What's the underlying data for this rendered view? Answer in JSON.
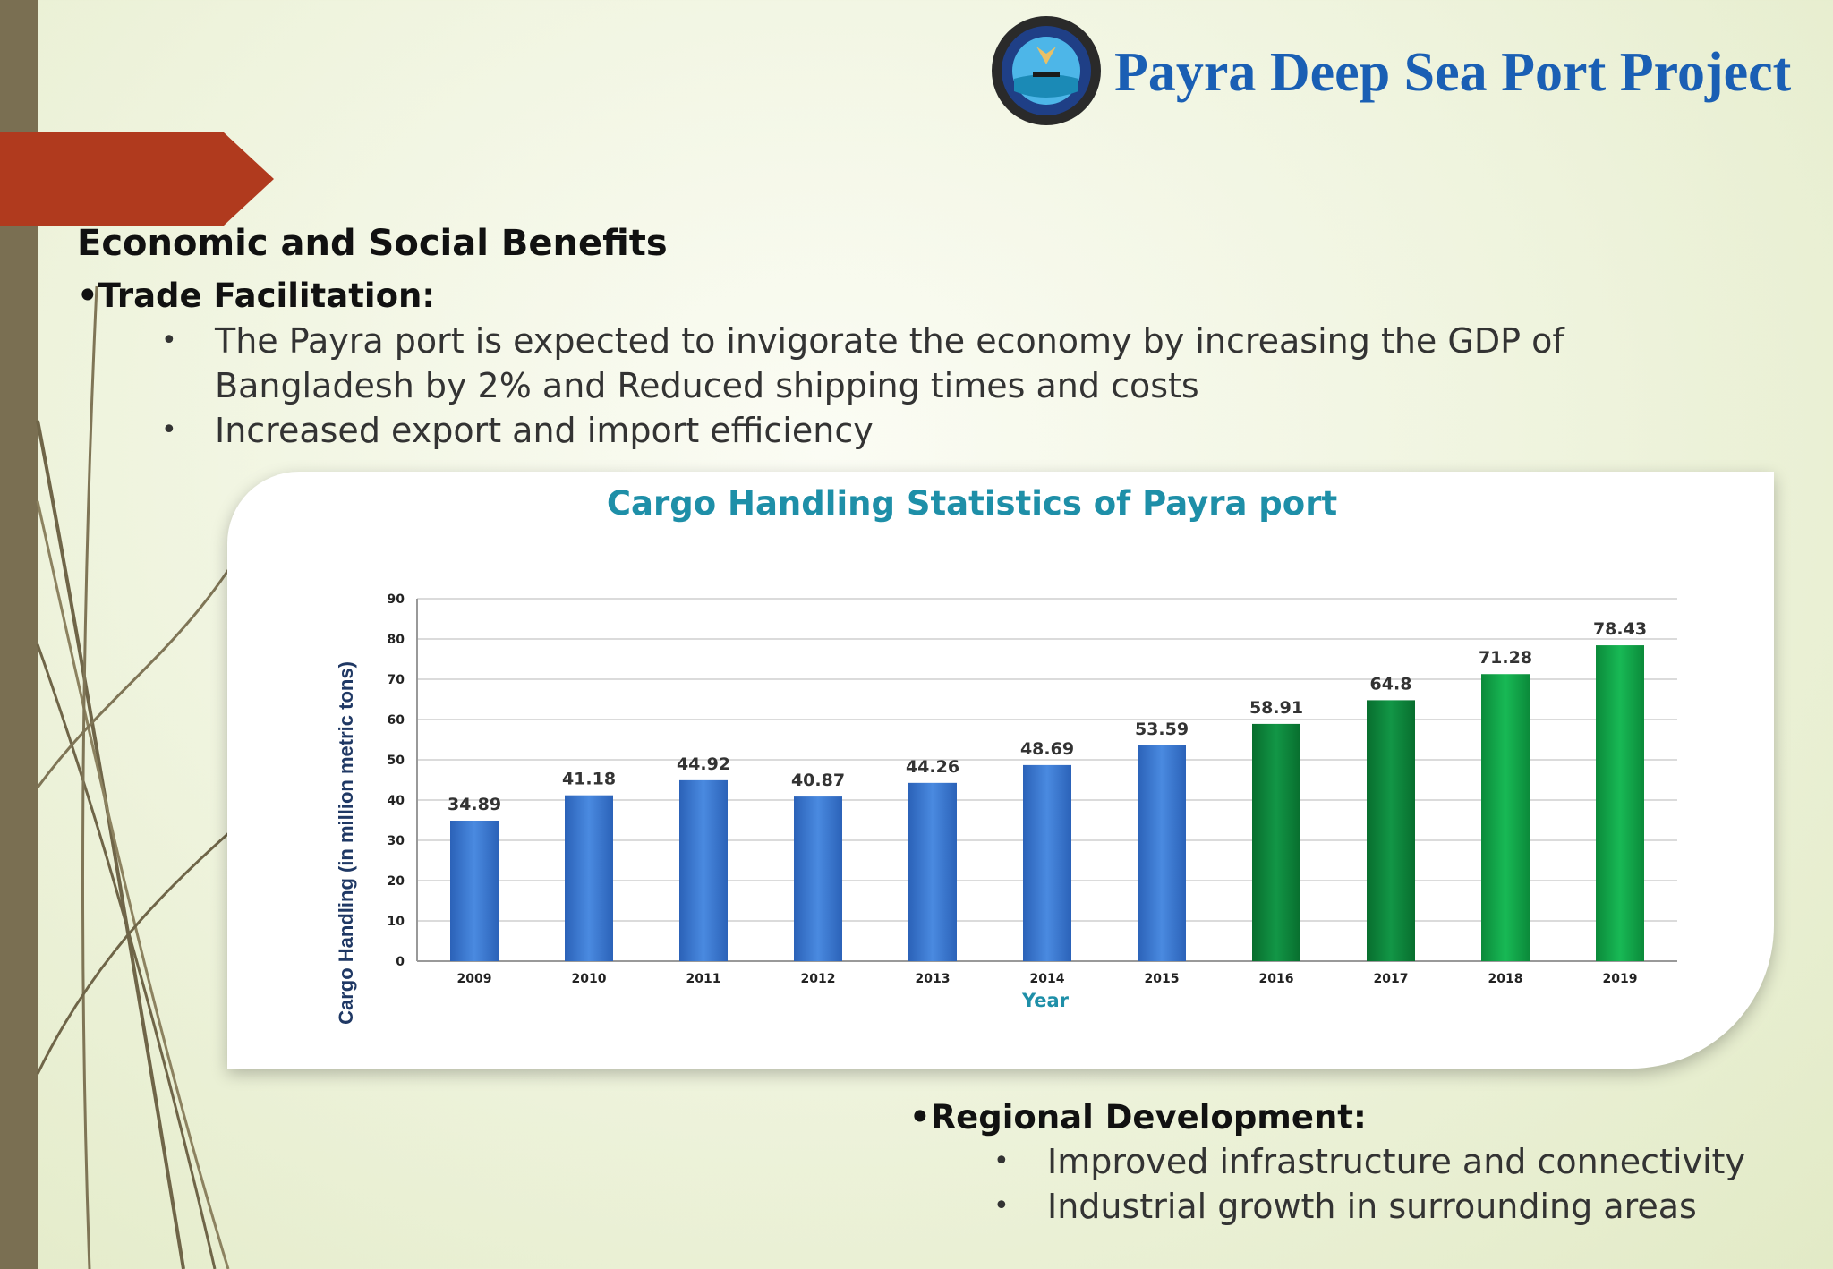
{
  "header": {
    "title": "Payra Deep Sea Port Project"
  },
  "slide": {
    "section_heading": "Economic and Social Benefits",
    "trade": {
      "heading": "•Trade Facilitation:",
      "bullets": [
        "The Payra port is expected to invigorate the economy by increasing the GDP of Bangladesh by 2% and Reduced shipping times and costs",
        "Increased export and import efficiency"
      ]
    },
    "regional": {
      "heading": "•Regional Development:",
      "bullets": [
        "Improved infrastructure and connectivity",
        "Industrial growth in surrounding areas"
      ]
    },
    "bullet_char": "•"
  },
  "colors": {
    "title_blue": "#1a5fb4",
    "accent_red": "#b03a1e",
    "sidebar": "#7a6f52",
    "bar_blue": "#3a7bd5",
    "bar_green": "#12a84a",
    "chart_title": "#1e8fa8"
  },
  "chart_data": {
    "type": "bar",
    "title": "Cargo Handling Statistics of Payra port",
    "xlabel": "Year",
    "ylabel": "Cargo Handling (in million metric tons)",
    "ylim": [
      0,
      90
    ],
    "yticks": [
      0,
      10,
      20,
      30,
      40,
      50,
      60,
      70,
      80,
      90
    ],
    "grid": true,
    "categories": [
      "2009",
      "2010",
      "2011",
      "2012",
      "2013",
      "2014",
      "2015",
      "2016",
      "2017",
      "2018",
      "2019"
    ],
    "values": [
      34.89,
      41.18,
      44.92,
      40.87,
      44.26,
      48.69,
      53.59,
      58.91,
      64.8,
      71.28,
      78.43
    ],
    "value_labels": [
      "34.89",
      "41.18",
      "44.92",
      "40.87",
      "44.26",
      "48.69",
      "53.59",
      "58.91",
      "64.8",
      "71.28",
      "78.43"
    ],
    "bar_colors": [
      "#3a7bd5",
      "#3a7bd5",
      "#3a7bd5",
      "#3a7bd5",
      "#3a7bd5",
      "#3a7bd5",
      "#3a7bd5",
      "#0b8a3a",
      "#0b8a3a",
      "#12a84a",
      "#12a84a"
    ]
  }
}
